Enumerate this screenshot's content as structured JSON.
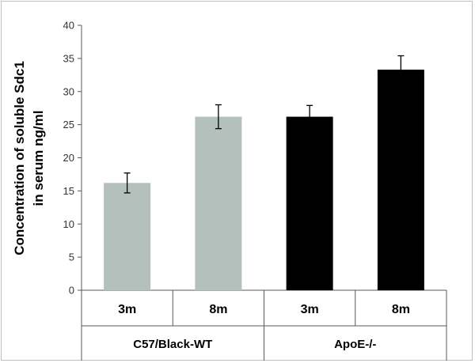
{
  "chart_data": {
    "type": "bar",
    "ylabel_line1": "Concentration of soluble Sdc1",
    "ylabel_line2": "in serum  ng/ml",
    "ylim": [
      0,
      40
    ],
    "yticks": [
      "0",
      "5",
      "10",
      "15",
      "20",
      "25",
      "30",
      "35",
      "40"
    ],
    "grid": false,
    "categories": [
      "3m",
      "8m",
      "3m",
      "8m"
    ],
    "groups": [
      {
        "label": "C57/Black-WT",
        "span": [
          0,
          1
        ]
      },
      {
        "label": "ApoE-/-",
        "span": [
          2,
          3
        ]
      }
    ],
    "values": [
      16.2,
      26.2,
      26.2,
      33.3
    ],
    "errors": [
      1.5,
      1.8,
      1.7,
      2.1
    ],
    "colors": [
      "#b4c0bc",
      "#b4c0bc",
      "#000000",
      "#000000"
    ]
  }
}
